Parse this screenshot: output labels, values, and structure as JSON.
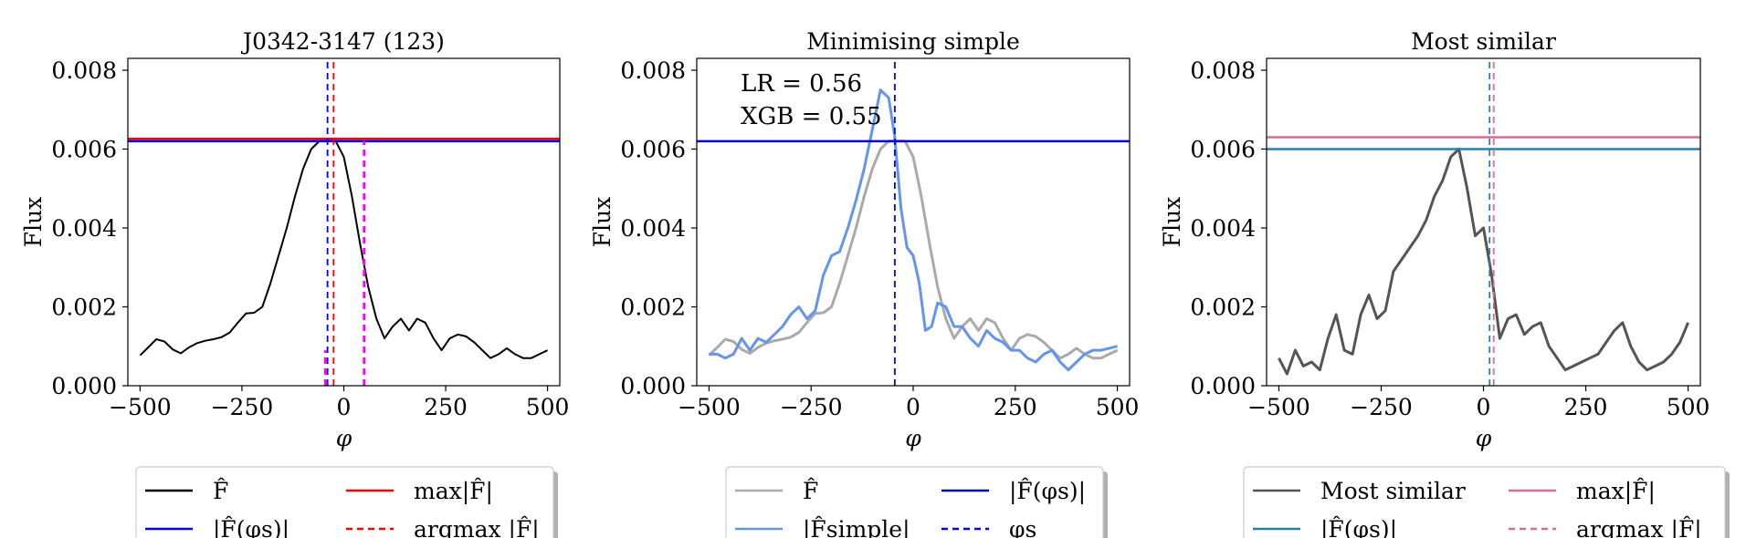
{
  "chart_data": [
    {
      "type": "line",
      "title": "J0342-3147 (123)",
      "xlabel": "φ",
      "ylabel": "Flux",
      "xlim": [
        -530,
        530
      ],
      "ylim": [
        0,
        0.0083
      ],
      "xticks": [
        -500,
        -250,
        0,
        250,
        500
      ],
      "xtick_labels": [
        "−500",
        "−250",
        "0",
        "250",
        "500"
      ],
      "yticks": [
        0,
        0.002,
        0.004,
        0.006,
        0.008
      ],
      "ytick_labels": [
        "0.000",
        "0.002",
        "0.004",
        "0.006",
        "0.008"
      ],
      "series": [
        {
          "name": "F̂",
          "color": "#000000",
          "x": [
            -500,
            -480,
            -460,
            -440,
            -420,
            -400,
            -380,
            -360,
            -340,
            -320,
            -300,
            -280,
            -260,
            -240,
            -220,
            -200,
            -180,
            -160,
            -140,
            -120,
            -100,
            -80,
            -60,
            -40,
            -20,
            0,
            20,
            40,
            60,
            80,
            100,
            120,
            140,
            160,
            180,
            200,
            220,
            240,
            260,
            280,
            300,
            320,
            340,
            360,
            380,
            400,
            420,
            440,
            460,
            480,
            500
          ],
          "y": [
            0.00077,
            0.00097,
            0.00118,
            0.00112,
            0.00092,
            0.00082,
            0.00097,
            0.00108,
            0.00114,
            0.00118,
            0.00123,
            0.00135,
            0.0016,
            0.00183,
            0.00185,
            0.002,
            0.0026,
            0.0033,
            0.004,
            0.0048,
            0.0055,
            0.006,
            0.0062,
            0.0062,
            0.0062,
            0.0058,
            0.0048,
            0.0036,
            0.0025,
            0.0017,
            0.0012,
            0.0015,
            0.0017,
            0.0014,
            0.0017,
            0.0016,
            0.0012,
            0.0009,
            0.0012,
            0.0013,
            0.00125,
            0.0011,
            0.0009,
            0.0007,
            0.0008,
            0.00095,
            0.0008,
            0.0007,
            0.0007,
            0.0008,
            0.0009
          ]
        }
      ],
      "hlines": [
        {
          "name": "max|F̂|",
          "y": 0.00626,
          "color": "#ff0000",
          "style": "solid"
        },
        {
          "name": "|F̂(φs)|",
          "y": 0.0062,
          "color": "#0000ff",
          "style": "solid"
        }
      ],
      "vlines": [
        {
          "name": "φs",
          "x": -40,
          "color": "#0000ff",
          "style": "dashed"
        },
        {
          "name": "argmax |F̂|",
          "x": -25,
          "color": "#ff0000",
          "style": "dashed"
        },
        {
          "x": 50,
          "color": "#ff00ff",
          "style": "dashed",
          "ymax": 0.0062
        },
        {
          "x": -45,
          "color": "#ff00ff",
          "style": "dashed",
          "ymax": 0.0009
        }
      ],
      "legend": {
        "location": "below",
        "entries": [
          {
            "label": "F̂",
            "color": "#000000",
            "style": "solid"
          },
          {
            "label": "max|F̂|",
            "color": "#ff0000",
            "style": "solid"
          },
          {
            "label": "|F̂(φs)|",
            "color": "#0000ff",
            "style": "solid"
          },
          {
            "label": "argmax |F̂|",
            "color": "#ff0000",
            "style": "dashed"
          }
        ]
      }
    },
    {
      "type": "line",
      "title": "Minimising simple",
      "xlabel": "φ",
      "ylabel": "Flux",
      "xlim": [
        -530,
        530
      ],
      "ylim": [
        0,
        0.0083
      ],
      "xticks": [
        -500,
        -250,
        0,
        250,
        500
      ],
      "xtick_labels": [
        "−500",
        "−250",
        "0",
        "250",
        "500"
      ],
      "yticks": [
        0,
        0.002,
        0.004,
        0.006,
        0.008
      ],
      "ytick_labels": [
        "0.000",
        "0.002",
        "0.004",
        "0.006",
        "0.008"
      ],
      "annotations": [
        "LR = 0.56",
        "XGB = 0.55"
      ],
      "series": [
        {
          "name": "F̂",
          "color": "#aaaaaa",
          "x": [
            -500,
            -480,
            -460,
            -440,
            -420,
            -400,
            -380,
            -360,
            -340,
            -320,
            -300,
            -280,
            -260,
            -240,
            -220,
            -200,
            -180,
            -160,
            -140,
            -120,
            -100,
            -80,
            -60,
            -40,
            -20,
            0,
            20,
            40,
            60,
            80,
            100,
            120,
            140,
            160,
            180,
            200,
            220,
            240,
            260,
            280,
            300,
            320,
            340,
            360,
            380,
            400,
            420,
            440,
            460,
            480,
            500
          ],
          "y": [
            0.00077,
            0.00097,
            0.00118,
            0.00112,
            0.00092,
            0.00082,
            0.00097,
            0.00108,
            0.00114,
            0.00118,
            0.00123,
            0.00135,
            0.0016,
            0.00183,
            0.00185,
            0.002,
            0.0026,
            0.0033,
            0.004,
            0.0048,
            0.0055,
            0.006,
            0.0062,
            0.0062,
            0.0062,
            0.0058,
            0.0048,
            0.0036,
            0.0025,
            0.0017,
            0.0012,
            0.0015,
            0.0017,
            0.0014,
            0.0017,
            0.0016,
            0.0012,
            0.0009,
            0.0012,
            0.0013,
            0.00125,
            0.0011,
            0.0009,
            0.0007,
            0.0008,
            0.00095,
            0.0008,
            0.0007,
            0.0007,
            0.0008,
            0.0009
          ]
        },
        {
          "name": "|F̂simple|",
          "color": "#6495ed",
          "x": [
            -500,
            -480,
            -460,
            -440,
            -420,
            -400,
            -380,
            -360,
            -340,
            -320,
            -300,
            -280,
            -260,
            -240,
            -220,
            -200,
            -180,
            -160,
            -140,
            -120,
            -100,
            -80,
            -60,
            -45,
            -30,
            -15,
            0,
            15,
            30,
            45,
            60,
            80,
            100,
            120,
            140,
            160,
            180,
            200,
            220,
            240,
            260,
            280,
            300,
            320,
            340,
            360,
            380,
            400,
            420,
            440,
            460,
            480,
            500
          ],
          "y": [
            0.0008,
            0.0008,
            0.0007,
            0.0008,
            0.0012,
            0.0009,
            0.0012,
            0.0011,
            0.0013,
            0.0015,
            0.0018,
            0.002,
            0.0017,
            0.0019,
            0.0028,
            0.0033,
            0.0034,
            0.004,
            0.0047,
            0.0055,
            0.0065,
            0.0075,
            0.0073,
            0.0063,
            0.0045,
            0.0035,
            0.0033,
            0.0026,
            0.0014,
            0.0015,
            0.0021,
            0.002,
            0.0015,
            0.0015,
            0.0012,
            0.001,
            0.0014,
            0.0012,
            0.0011,
            0.0009,
            0.0009,
            0.0007,
            0.0006,
            0.0008,
            0.0009,
            0.0006,
            0.0004,
            0.0006,
            0.0008,
            0.0009,
            0.0009,
            0.00095,
            0.001
          ]
        }
      ],
      "hlines": [
        {
          "name": "|F̂(φs)|",
          "y": 0.0062,
          "color": "#0000cc",
          "style": "solid"
        }
      ],
      "vlines": [
        {
          "name": "φs",
          "x": -45,
          "color": "#0000ff",
          "style": "dashed"
        }
      ],
      "legend": {
        "location": "below",
        "entries": [
          {
            "label": "F̂",
            "color": "#aaaaaa",
            "style": "solid"
          },
          {
            "label": "|F̂(φs)|",
            "color": "#0000cc",
            "style": "solid"
          },
          {
            "label": "|F̂simple|",
            "color": "#6495ed",
            "style": "solid"
          },
          {
            "label": "φs",
            "color": "#0000ff",
            "style": "dashed"
          }
        ]
      }
    },
    {
      "type": "line",
      "title": "Most similar",
      "xlabel": "φ",
      "ylabel": "Flux",
      "xlim": [
        -530,
        530
      ],
      "ylim": [
        0,
        0.0083
      ],
      "xticks": [
        -500,
        -250,
        0,
        250,
        500
      ],
      "xtick_labels": [
        "−500",
        "−250",
        "0",
        "250",
        "500"
      ],
      "yticks": [
        0,
        0.002,
        0.004,
        0.006,
        0.008
      ],
      "ytick_labels": [
        "0.000",
        "0.002",
        "0.004",
        "0.006",
        "0.008"
      ],
      "series": [
        {
          "name": "Most similar",
          "color": "#555555",
          "x": [
            -500,
            -480,
            -460,
            -440,
            -420,
            -400,
            -380,
            -360,
            -340,
            -320,
            -300,
            -280,
            -260,
            -240,
            -220,
            -200,
            -180,
            -160,
            -140,
            -120,
            -100,
            -80,
            -60,
            -40,
            -20,
            0,
            20,
            40,
            60,
            80,
            100,
            120,
            140,
            160,
            180,
            200,
            220,
            240,
            260,
            280,
            300,
            320,
            340,
            360,
            380,
            400,
            420,
            440,
            460,
            480,
            500
          ],
          "y": [
            0.0007,
            0.0003,
            0.0009,
            0.0005,
            0.0006,
            0.0004,
            0.0012,
            0.0018,
            0.0009,
            0.0008,
            0.0018,
            0.0023,
            0.0017,
            0.0019,
            0.0029,
            0.0032,
            0.0035,
            0.0038,
            0.0042,
            0.0048,
            0.0052,
            0.0058,
            0.006,
            0.005,
            0.0038,
            0.004,
            0.0028,
            0.0012,
            0.0017,
            0.0018,
            0.0013,
            0.0015,
            0.0016,
            0.001,
            0.0007,
            0.0004,
            0.0005,
            0.0006,
            0.0007,
            0.0008,
            0.0011,
            0.0014,
            0.0016,
            0.001,
            0.0006,
            0.0004,
            0.0005,
            0.0006,
            0.0008,
            0.0011,
            0.0016
          ]
        }
      ],
      "hlines": [
        {
          "name": "max|F̂|",
          "y": 0.0063,
          "color": "#d96c94",
          "style": "solid"
        },
        {
          "name": "|F̂(φs)|",
          "y": 0.006,
          "color": "#2a7fa8",
          "style": "solid"
        }
      ],
      "vlines": [
        {
          "name": "φs",
          "x": 15,
          "color": "#2a7fa8",
          "style": "dashed"
        },
        {
          "name": "argmax |F̂|",
          "x": 25,
          "color": "#d96c94",
          "style": "dashed"
        }
      ],
      "legend": {
        "location": "below",
        "entries": [
          {
            "label": "Most similar",
            "color": "#555555",
            "style": "solid"
          },
          {
            "label": "max|F̂|",
            "color": "#d96c94",
            "style": "solid"
          },
          {
            "label": "|F̂(φs)|",
            "color": "#2a7fa8",
            "style": "solid"
          },
          {
            "label": "argmax |F̂|",
            "color": "#d96c94",
            "style": "dashed"
          }
        ]
      }
    }
  ]
}
